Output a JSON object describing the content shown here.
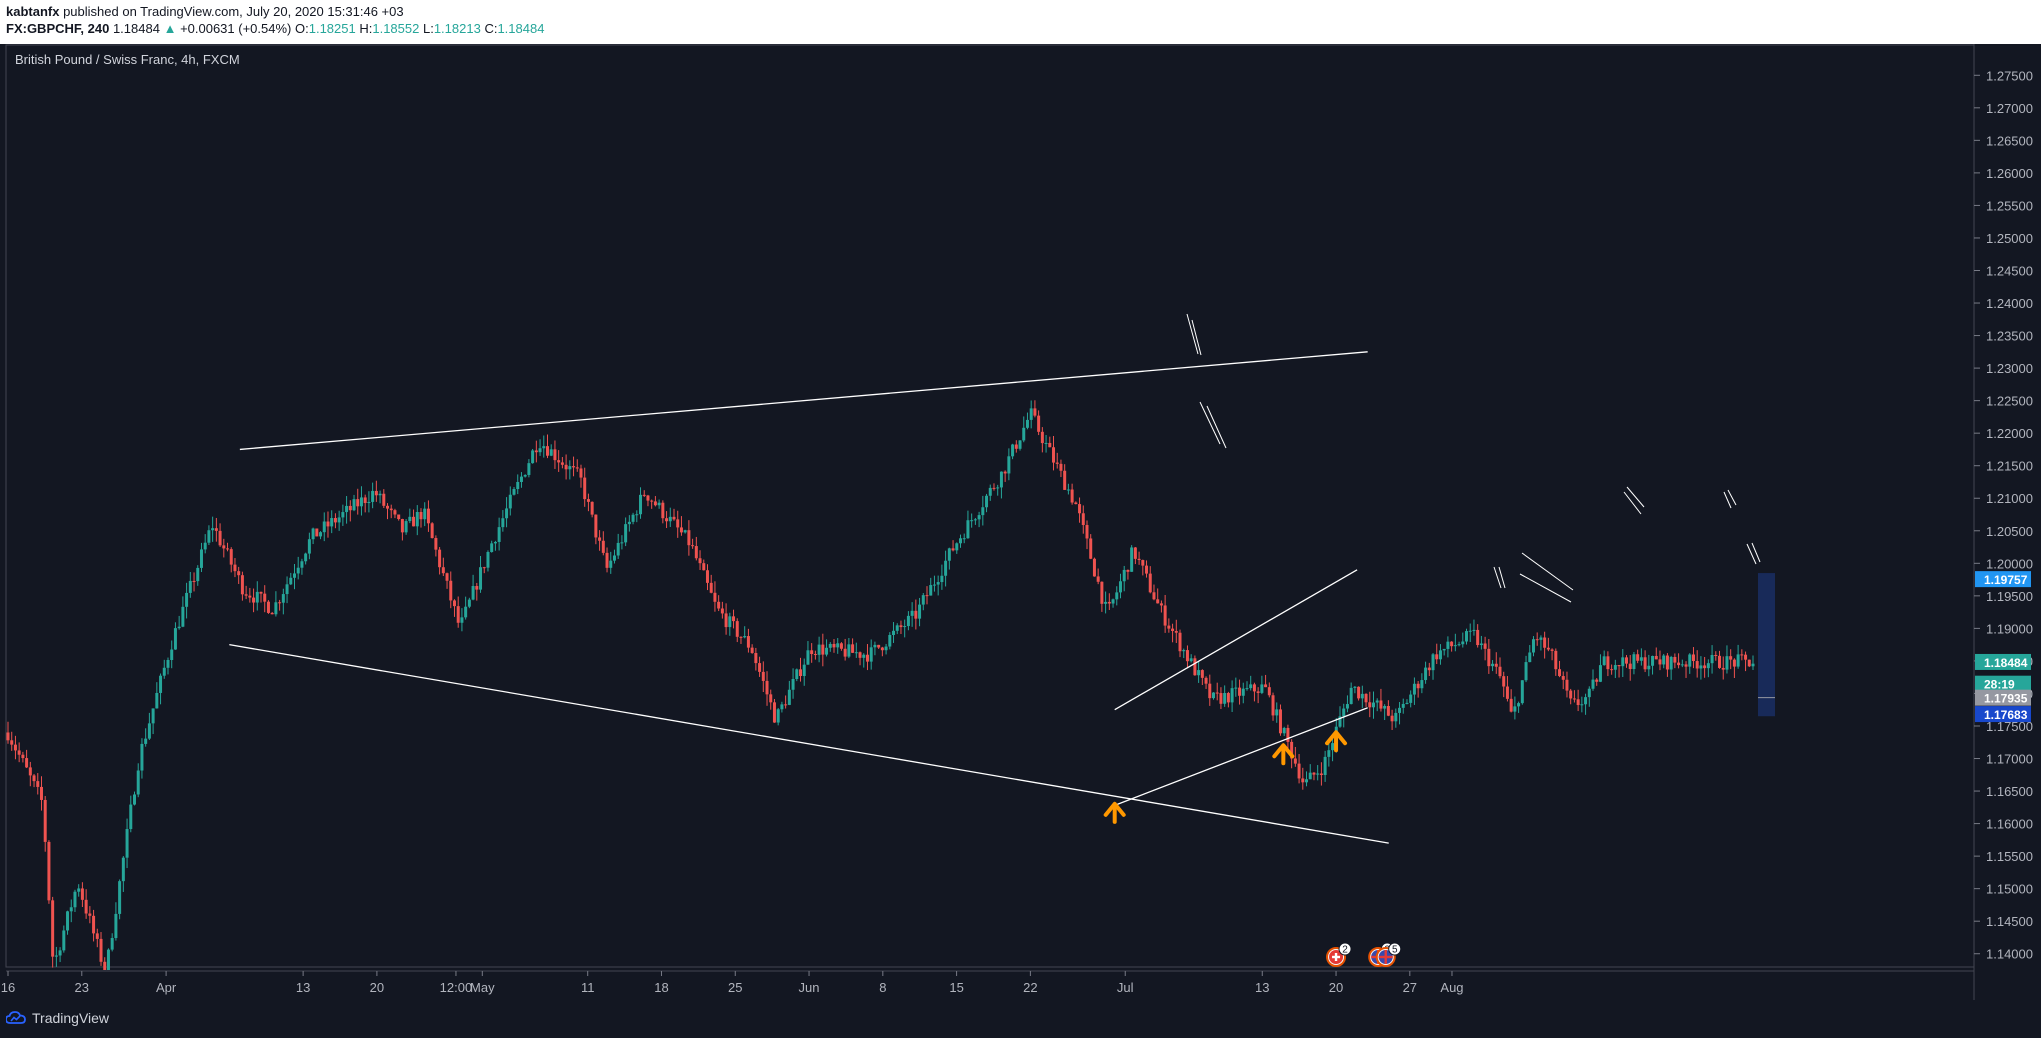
{
  "header": {
    "author": "kabtanfx",
    "published": " published on TradingView.com, July 20, 2020 15:31:46 +03",
    "symbol": "FX:GBPCHF, 240",
    "price": "1.18484",
    "change_arrow": "▲",
    "change": "+0.00631 (+0.54%)",
    "o_label": "O:",
    "o_value": "1.18251",
    "h_label": "H:",
    "h_value": "1.18552",
    "l_label": "L:",
    "l_value": "1.18213",
    "c_label": "C:",
    "c_value": "1.18484"
  },
  "footer": {
    "brand": "TradingView"
  },
  "colors": {
    "background": "#131722",
    "up_candle": "#26a69a",
    "down_candle": "#ef5350",
    "trendline": "#ffffff",
    "arrow": "#ff9800",
    "label_blue": "#2196f3",
    "label_green": "#26a69a",
    "label_gray": "#9598a1",
    "label_navy": "#1848cc"
  },
  "chart_data": {
    "type": "candlestick",
    "title": "British Pound / Swiss Franc, 4h, FXCM",
    "instrument": "GBPCHF",
    "timeframe": "4h",
    "ylim": [
      1.1375,
      1.2795
    ],
    "y_ticks": [
      "1.27500",
      "1.27000",
      "1.26500",
      "1.26000",
      "1.25500",
      "1.25000",
      "1.24500",
      "1.24000",
      "1.23500",
      "1.23000",
      "1.22500",
      "1.22000",
      "1.21500",
      "1.21000",
      "1.20500",
      "1.20000",
      "1.19500",
      "1.19000",
      "1.18500",
      "1.18000",
      "1.17500",
      "1.17000",
      "1.16500",
      "1.16000",
      "1.15500",
      "1.15000",
      "1.14500",
      "1.14000"
    ],
    "x_ticks": [
      "16",
      "23",
      "Apr",
      "13",
      "20",
      "12:00",
      "May",
      "11",
      "18",
      "25",
      "Jun",
      "8",
      "15",
      "22",
      "Jul",
      "13",
      "20",
      "27",
      "Aug"
    ],
    "price_path": [
      {
        "t": 0,
        "p": 1.174
      },
      {
        "t": 0.02,
        "p": 1.163
      },
      {
        "t": 0.026,
        "p": 1.138
      },
      {
        "t": 0.04,
        "p": 1.151
      },
      {
        "t": 0.056,
        "p": 1.137
      },
      {
        "t": 0.075,
        "p": 1.17
      },
      {
        "t": 0.094,
        "p": 1.188
      },
      {
        "t": 0.117,
        "p": 1.206
      },
      {
        "t": 0.135,
        "p": 1.196
      },
      {
        "t": 0.152,
        "p": 1.193
      },
      {
        "t": 0.174,
        "p": 1.204
      },
      {
        "t": 0.21,
        "p": 1.211
      },
      {
        "t": 0.226,
        "p": 1.205
      },
      {
        "t": 0.238,
        "p": 1.208
      },
      {
        "t": 0.259,
        "p": 1.19
      },
      {
        "t": 0.277,
        "p": 1.203
      },
      {
        "t": 0.304,
        "p": 1.219
      },
      {
        "t": 0.328,
        "p": 1.213
      },
      {
        "t": 0.343,
        "p": 1.199
      },
      {
        "t": 0.365,
        "p": 1.211
      },
      {
        "t": 0.391,
        "p": 1.203
      },
      {
        "t": 0.406,
        "p": 1.193
      },
      {
        "t": 0.426,
        "p": 1.187
      },
      {
        "t": 0.44,
        "p": 1.176
      },
      {
        "t": 0.46,
        "p": 1.187
      },
      {
        "t": 0.494,
        "p": 1.186
      },
      {
        "t": 0.52,
        "p": 1.192
      },
      {
        "t": 0.543,
        "p": 1.203
      },
      {
        "t": 0.57,
        "p": 1.214
      },
      {
        "t": 0.586,
        "p": 1.223
      },
      {
        "t": 0.597,
        "p": 1.217
      },
      {
        "t": 0.612,
        "p": 1.209
      },
      {
        "t": 0.63,
        "p": 1.192
      },
      {
        "t": 0.645,
        "p": 1.202
      },
      {
        "t": 0.66,
        "p": 1.193
      },
      {
        "t": 0.69,
        "p": 1.179
      },
      {
        "t": 0.72,
        "p": 1.181
      },
      {
        "t": 0.743,
        "p": 1.166
      },
      {
        "t": 0.754,
        "p": 1.169
      },
      {
        "t": 0.77,
        "p": 1.181
      },
      {
        "t": 0.795,
        "p": 1.176
      },
      {
        "t": 0.818,
        "p": 1.186
      },
      {
        "t": 0.84,
        "p": 1.189
      },
      {
        "t": 0.856,
        "p": 1.182
      },
      {
        "t": 0.862,
        "p": 1.176
      },
      {
        "t": 0.875,
        "p": 1.189
      },
      {
        "t": 0.884,
        "p": 1.186
      },
      {
        "t": 0.896,
        "p": 1.178
      },
      {
        "t": 0.906,
        "p": 1.1795
      },
      {
        "t": 0.914,
        "p": 1.18484
      }
    ],
    "trendlines": [
      {
        "name": "upper-resistance",
        "start": {
          "date": "Apr 7",
          "price": 1.2175
        },
        "end": {
          "date": "Jul 23",
          "price": 1.2325
        }
      },
      {
        "name": "lower-support",
        "start": {
          "date": "Apr 6",
          "price": 1.1875
        },
        "end": {
          "date": "Jul 25",
          "price": 1.157
        }
      },
      {
        "name": "channel-top",
        "start": {
          "date": "Jun 29",
          "price": 1.1775
        },
        "end": {
          "date": "Jul 22",
          "price": 1.199
        }
      },
      {
        "name": "channel-bottom",
        "start": {
          "date": "Jun 29",
          "price": 1.1628
        },
        "end": {
          "date": "Jul 23",
          "price": 1.1778
        }
      }
    ],
    "markers": [
      {
        "type": "arrow-up",
        "date": "Jun 29",
        "price": 1.1615
      },
      {
        "type": "arrow-up",
        "date": "Jul 15",
        "price": 1.1705
      },
      {
        "type": "arrow-up",
        "date": "Jul 20",
        "price": 1.1725
      }
    ],
    "price_labels": [
      {
        "text": "1.19757",
        "value": 1.19757,
        "color": "#2196f3"
      },
      {
        "text": "1.18484",
        "value": 1.18484,
        "color": "#26a69a"
      },
      {
        "text": "28:19",
        "value": 1.1815,
        "color": "#26a69a"
      },
      {
        "text": "1.17935",
        "value": 1.17935,
        "color": "#9598a1"
      },
      {
        "text": "1.17683",
        "value": 1.17683,
        "color": "#1848cc"
      }
    ],
    "events": [
      {
        "date": "Jul 20",
        "badge": "2",
        "icon": "flag-switzerland-icon"
      },
      {
        "date": "Jul 24",
        "badge": "2",
        "icon": "flag-uk-icon"
      },
      {
        "date": "Jul 25",
        "badge": "5",
        "icon": "flag-uk-icon"
      }
    ]
  }
}
